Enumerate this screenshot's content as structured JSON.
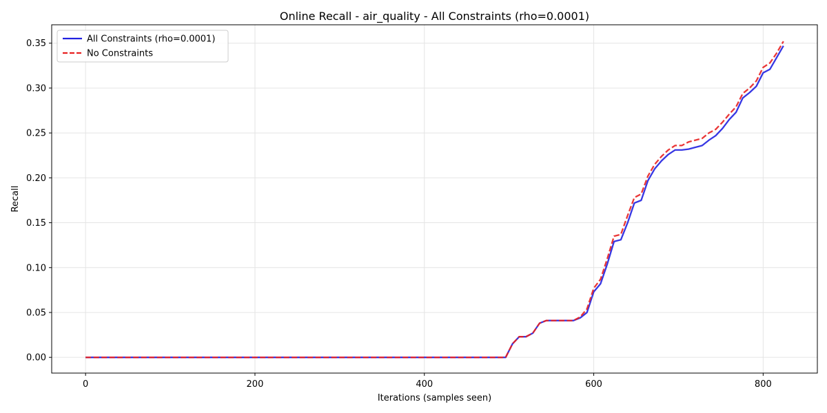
{
  "chart_data": {
    "type": "line",
    "title": "Online Recall - air_quality - All Constraints (rho=0.0001)",
    "xlabel": "Iterations (samples seen)",
    "ylabel": "Recall",
    "xlim": [
      -40,
      864
    ],
    "ylim": [
      -0.0175,
      0.3705
    ],
    "xticks": [
      0,
      200,
      400,
      600,
      800
    ],
    "xtick_labels": [
      "0",
      "200",
      "400",
      "600",
      "800"
    ],
    "yticks": [
      0.0,
      0.05,
      0.1,
      0.15,
      0.2,
      0.25,
      0.3,
      0.35
    ],
    "ytick_labels": [
      "0.00",
      "0.05",
      "0.10",
      "0.15",
      "0.20",
      "0.25",
      "0.30",
      "0.35"
    ],
    "grid": true,
    "legend_position": "top-left",
    "series": [
      {
        "name": "All Constraints (rho=0.0001)",
        "color": "#2020e0",
        "style": "solid",
        "x": [
          0,
          496,
          504,
          512,
          520,
          528,
          536,
          544,
          552,
          560,
          568,
          576,
          584,
          592,
          600,
          608,
          616,
          624,
          632,
          640,
          648,
          656,
          664,
          672,
          680,
          688,
          696,
          704,
          712,
          720,
          728,
          736,
          744,
          752,
          760,
          768,
          776,
          784,
          792,
          800,
          808,
          816,
          824
        ],
        "y": [
          0.0,
          0.0,
          0.015,
          0.023,
          0.023,
          0.027,
          0.038,
          0.041,
          0.041,
          0.041,
          0.041,
          0.041,
          0.044,
          0.05,
          0.073,
          0.082,
          0.104,
          0.129,
          0.131,
          0.15,
          0.172,
          0.175,
          0.197,
          0.21,
          0.219,
          0.226,
          0.231,
          0.231,
          0.232,
          0.234,
          0.236,
          0.242,
          0.247,
          0.255,
          0.265,
          0.273,
          0.289,
          0.295,
          0.302,
          0.317,
          0.321,
          0.334,
          0.347
        ]
      },
      {
        "name": "No Constraints",
        "color": "#e82020",
        "style": "dashed",
        "x": [
          0,
          496,
          504,
          512,
          520,
          528,
          536,
          544,
          552,
          560,
          568,
          576,
          584,
          592,
          600,
          608,
          616,
          624,
          632,
          640,
          648,
          656,
          664,
          672,
          680,
          688,
          696,
          704,
          712,
          720,
          728,
          736,
          744,
          752,
          760,
          768,
          776,
          784,
          792,
          800,
          808,
          816,
          824
        ],
        "y": [
          0.0,
          0.0,
          0.015,
          0.023,
          0.023,
          0.027,
          0.038,
          0.041,
          0.041,
          0.041,
          0.041,
          0.041,
          0.045,
          0.054,
          0.077,
          0.087,
          0.11,
          0.135,
          0.137,
          0.158,
          0.178,
          0.182,
          0.202,
          0.215,
          0.224,
          0.231,
          0.236,
          0.236,
          0.24,
          0.242,
          0.244,
          0.25,
          0.254,
          0.262,
          0.271,
          0.279,
          0.294,
          0.3,
          0.308,
          0.323,
          0.328,
          0.339,
          0.352
        ]
      }
    ]
  }
}
